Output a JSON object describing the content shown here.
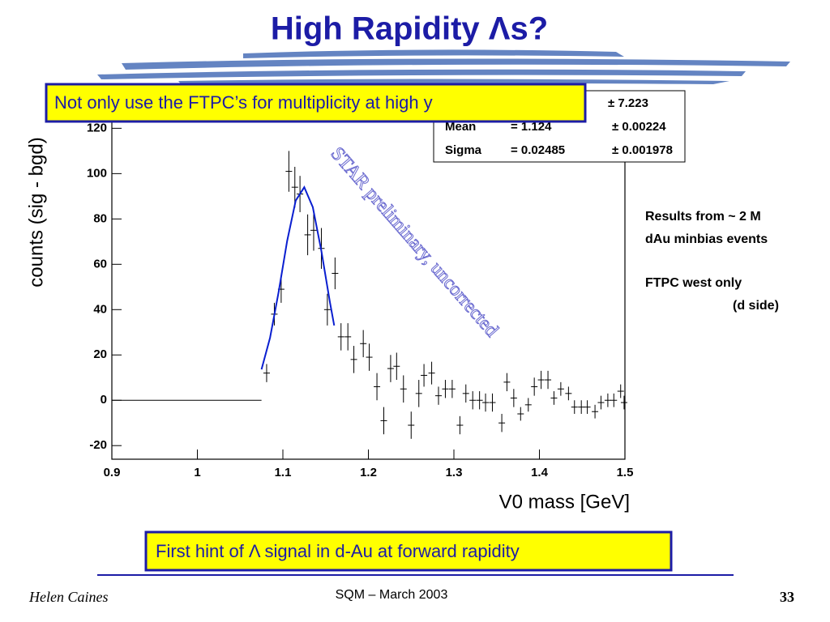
{
  "title": "High Rapidity Λs?",
  "callout_top": "Not only use the FTPC’s for multiplicity at high y",
  "callout_bottom": "First hint of Λ signal in d-Au at forward rapidity",
  "notes": [
    "Results from ~ 2 M",
    "dAu minbias events",
    "FTPC west only",
    "(d side)"
  ],
  "footer": {
    "author": "Helen Caines",
    "event": "SQM  – March 2003",
    "page": "33"
  },
  "chart_data": {
    "type": "scatter",
    "x_label": "V0 mass [GeV]",
    "y_label": "counts (sig - bgd)",
    "watermark": "STAR preliminary, uncorrected",
    "stats": [
      [
        "± 7.223"
      ],
      [
        "Mean",
        "= 1.124",
        "± 0.00224"
      ],
      [
        "Sigma",
        "= 0.02485",
        "± 0.001978"
      ]
    ],
    "xlim": [
      0.9,
      1.5
    ],
    "ylim": [
      -26,
      123
    ],
    "xticks": [
      {
        "value": 0.9,
        "label": "0.9"
      },
      1,
      1.1,
      1.2,
      1.3,
      1.4,
      1.5
    ],
    "yticks": [
      -20,
      0,
      20,
      40,
      60,
      80,
      100,
      120
    ],
    "zero_bins": {
      "x": [
        0.9,
        1.075
      ],
      "values": [
        0,
        0
      ]
    },
    "points": {
      "color": "#000000",
      "x": [
        1.081,
        1.09,
        1.098,
        1.107,
        1.114,
        1.12,
        1.129,
        1.136,
        1.145,
        1.152,
        1.161,
        1.168,
        1.176,
        1.183,
        1.194,
        1.201,
        1.21,
        1.218,
        1.226,
        1.233,
        1.241,
        1.25,
        1.259,
        1.265,
        1.274,
        1.282,
        1.29,
        1.298,
        1.307,
        1.314,
        1.322,
        1.33,
        1.337,
        1.345,
        1.356,
        1.362,
        1.37,
        1.378,
        1.387,
        1.394,
        1.402,
        1.41,
        1.417,
        1.425,
        1.434,
        1.441,
        1.449,
        1.456,
        1.465,
        1.472,
        1.48,
        1.487,
        1.495,
        1.499
      ],
      "values": [
        12,
        38,
        49,
        101,
        94,
        91,
        73,
        75,
        67,
        40,
        56,
        28,
        28,
        18,
        25,
        19,
        6,
        -9,
        14,
        15,
        5,
        -11,
        3,
        11,
        12,
        2,
        5,
        5,
        -11,
        3,
        0,
        0,
        -1,
        -1,
        -10,
        8,
        1,
        -6,
        -2,
        6,
        9,
        9,
        1,
        5,
        3,
        -3,
        -3,
        -3,
        -5,
        -1,
        0,
        0,
        4,
        -1
      ],
      "errors": [
        4,
        5,
        6,
        9,
        9,
        8,
        9,
        9,
        9,
        7,
        7,
        6,
        6,
        6,
        6,
        6,
        6,
        6,
        6,
        6,
        6,
        6,
        6,
        5,
        5,
        4,
        4,
        4,
        4,
        4,
        4,
        4,
        4,
        4,
        4,
        4,
        4,
        3,
        3,
        4,
        4,
        4,
        3,
        3,
        3,
        3,
        3,
        3,
        3,
        3,
        3,
        3,
        3,
        3
      ]
    },
    "fit": {
      "color": "#0a1fd0",
      "x": [
        1.075,
        1.085,
        1.095,
        1.105,
        1.115,
        1.125,
        1.135,
        1.145,
        1.155,
        1.16
      ],
      "values": [
        13.6,
        27.6,
        47.7,
        70.3,
        88.1,
        94,
        85.2,
        65.9,
        43.3,
        33
      ]
    }
  }
}
